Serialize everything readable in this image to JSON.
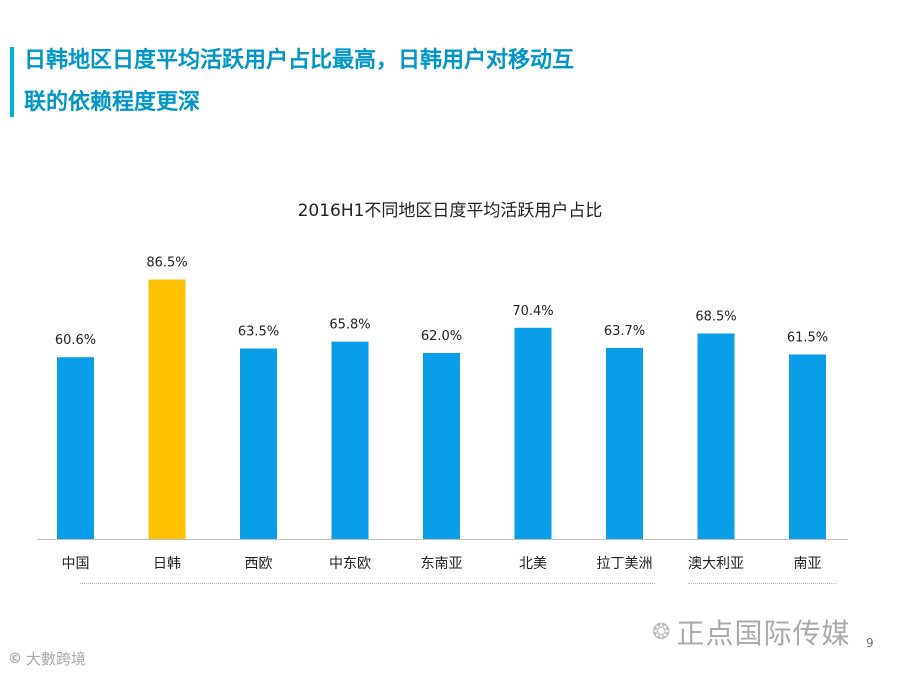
{
  "header": {
    "title_line1": "日韩地区日度平均活跃用户占比最高，日韩用户对移动互",
    "title_line2": "联的依赖程度更深"
  },
  "chart_data": {
    "type": "bar",
    "title": "2016H1不同地区日度平均活跃用户占比",
    "categories": [
      "中国",
      "日韩",
      "西欧",
      "中东欧",
      "东南亚",
      "北美",
      "拉丁美洲",
      "澳大利亚",
      "南亚"
    ],
    "values": [
      60.6,
      86.5,
      63.5,
      65.8,
      62.0,
      70.4,
      63.7,
      68.5,
      61.5
    ],
    "data_labels": [
      "60.6%",
      "86.5%",
      "63.5%",
      "65.8%",
      "62.0%",
      "70.4%",
      "63.7%",
      "68.5%",
      "61.5%"
    ],
    "ylim": [
      0,
      100
    ],
    "highlight_category": "日韩",
    "colors": {
      "default": "#0a9ee8",
      "highlight": "#ffc000",
      "axis": "#bfbfbf"
    },
    "grid": false,
    "legend": "none"
  },
  "watermark": {
    "icon": "wechat-icon",
    "text": "正点国际传媒"
  },
  "bottom_logo": {
    "icon": "logo-icon",
    "text": "大數跨境"
  },
  "page_number": "9"
}
